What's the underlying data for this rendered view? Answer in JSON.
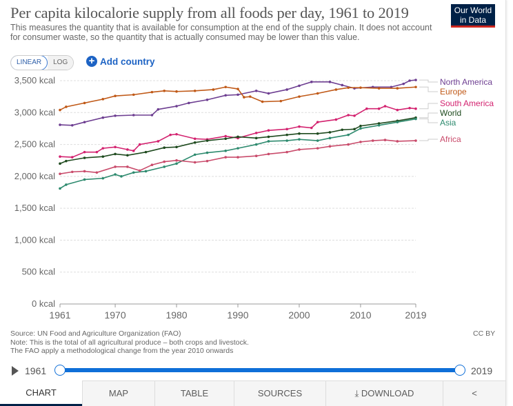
{
  "header": {
    "title": "Per capita kilocalorie supply from all foods per day, 1961 to 2019",
    "subtitle": "This measures the quantity that is available for consumption at the end of the supply chain. It does not account for consumer waste, so the quantity that is actually consumed may be lower than this value.",
    "logo": "Our World in Data"
  },
  "controls": {
    "linear": "LINEAR",
    "log": "LOG",
    "add_country": "Add country"
  },
  "chart_data": {
    "type": "line",
    "title": "Per capita kilocalorie supply from all foods per day, 1961 to 2019",
    "ylim": [
      0,
      3500
    ],
    "yticks": [
      {
        "v": 0,
        "label": "0 kcal"
      },
      {
        "v": 500,
        "label": "500 kcal"
      },
      {
        "v": 1000,
        "label": "1,000 kcal"
      },
      {
        "v": 1500,
        "label": "1,500 kcal"
      },
      {
        "v": 2000,
        "label": "2,000 kcal"
      },
      {
        "v": 2500,
        "label": "2,500 kcal"
      },
      {
        "v": 3000,
        "label": "3,000 kcal"
      },
      {
        "v": 3500,
        "label": "3,500 kcal"
      }
    ],
    "xlim": [
      1961,
      2019
    ],
    "xticks": [
      "1961",
      "1970",
      "1980",
      "1990",
      "2000",
      "2010",
      "2019"
    ],
    "grid": true,
    "legend": "right",
    "series": [
      {
        "name": "North America",
        "color": "#6d3e91",
        "x": [
          1961,
          1963,
          1965,
          1968,
          1970,
          1973,
          1976,
          1977,
          1980,
          1982,
          1985,
          1988,
          1990,
          1993,
          1995,
          1998,
          2000,
          2002,
          2005,
          2007,
          2009,
          2012,
          2015,
          2017,
          2018,
          2019
        ],
        "y": [
          2808,
          2800,
          2850,
          2920,
          2950,
          2960,
          2960,
          3050,
          3100,
          3150,
          3200,
          3270,
          3280,
          3340,
          3300,
          3360,
          3420,
          3480,
          3480,
          3430,
          3380,
          3400,
          3400,
          3450,
          3500,
          3510
        ]
      },
      {
        "name": "Europe",
        "color": "#c05917",
        "x": [
          1961,
          1962,
          1965,
          1968,
          1970,
          1973,
          1976,
          1978,
          1980,
          1983,
          1986,
          1988,
          1990,
          1991,
          1992,
          1994,
          1997,
          2000,
          2003,
          2006,
          2008,
          2010,
          2013,
          2016,
          2019
        ],
        "y": [
          3040,
          3090,
          3150,
          3210,
          3260,
          3280,
          3320,
          3340,
          3330,
          3340,
          3360,
          3400,
          3370,
          3240,
          3250,
          3170,
          3180,
          3250,
          3300,
          3360,
          3390,
          3390,
          3380,
          3380,
          3400
        ]
      },
      {
        "name": "South America",
        "color": "#d3226f",
        "x": [
          1961,
          1963,
          1965,
          1967,
          1968,
          1970,
          1972,
          1973,
          1974,
          1977,
          1979,
          1980,
          1983,
          1985,
          1988,
          1990,
          1993,
          1995,
          1998,
          2000,
          2002,
          2003,
          2006,
          2008,
          2009,
          2011,
          2013,
          2014,
          2016,
          2018,
          2019
        ],
        "y": [
          2310,
          2300,
          2380,
          2380,
          2440,
          2460,
          2420,
          2400,
          2500,
          2550,
          2650,
          2660,
          2590,
          2580,
          2630,
          2600,
          2680,
          2720,
          2740,
          2780,
          2760,
          2850,
          2890,
          2960,
          2950,
          3060,
          3060,
          3100,
          3040,
          3070,
          3060
        ]
      },
      {
        "name": "World",
        "color": "#1e4a1e",
        "x": [
          1961,
          1962,
          1965,
          1968,
          1970,
          1972,
          1975,
          1978,
          1980,
          1983,
          1985,
          1988,
          1990,
          1993,
          1995,
          1998,
          2000,
          2003,
          2005,
          2007,
          2009,
          2010,
          2013,
          2016,
          2019
        ],
        "y": [
          2200,
          2240,
          2290,
          2310,
          2350,
          2330,
          2380,
          2450,
          2460,
          2530,
          2560,
          2590,
          2620,
          2600,
          2620,
          2650,
          2670,
          2670,
          2690,
          2730,
          2740,
          2790,
          2830,
          2870,
          2920
        ]
      },
      {
        "name": "Asia",
        "color": "#2d8a6e",
        "x": [
          1961,
          1962,
          1965,
          1968,
          1970,
          1971,
          1973,
          1975,
          1978,
          1980,
          1983,
          1985,
          1988,
          1990,
          1993,
          1995,
          1998,
          2000,
          2003,
          2005,
          2008,
          2010,
          2013,
          2016,
          2019
        ],
        "y": [
          1810,
          1870,
          1950,
          1970,
          2030,
          2000,
          2060,
          2080,
          2150,
          2200,
          2340,
          2370,
          2400,
          2440,
          2500,
          2550,
          2560,
          2580,
          2560,
          2600,
          2650,
          2750,
          2800,
          2850,
          2900
        ]
      },
      {
        "name": "Africa",
        "color": "#c94b6b",
        "x": [
          1961,
          1963,
          1965,
          1967,
          1970,
          1972,
          1974,
          1976,
          1978,
          1980,
          1983,
          1985,
          1988,
          1990,
          1993,
          1995,
          1998,
          2000,
          2003,
          2005,
          2008,
          2010,
          2012,
          2014,
          2016,
          2019
        ],
        "y": [
          2040,
          2070,
          2080,
          2060,
          2150,
          2150,
          2090,
          2180,
          2230,
          2250,
          2220,
          2240,
          2300,
          2300,
          2320,
          2350,
          2380,
          2420,
          2440,
          2470,
          2500,
          2540,
          2560,
          2570,
          2550,
          2560
        ]
      }
    ]
  },
  "footer": {
    "source": "Source: UN Food and Agriculture Organization (FAO)",
    "note": "Note: This is the total of all agricultural produce – both crops and livestock.",
    "note2": "The FAO apply a methodological change from the year 2010 onwards",
    "license": "CC BY"
  },
  "timeline": {
    "start": "1961",
    "end": "2019"
  },
  "tabs": [
    "CHART",
    "MAP",
    "TABLE",
    "SOURCES",
    "DOWNLOAD"
  ]
}
